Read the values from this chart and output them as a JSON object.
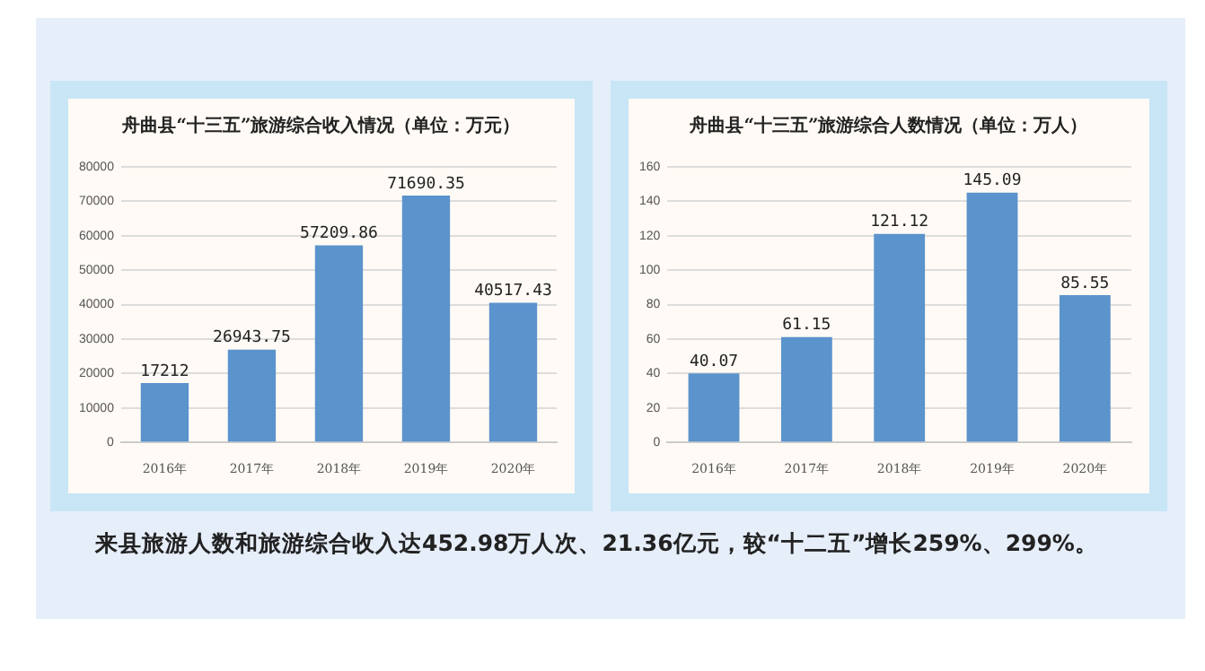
{
  "chart_data": [
    {
      "type": "bar",
      "title": "舟曲县“十三五”旅游综合收入情况（单位：万元）",
      "categories": [
        "2016年",
        "2017年",
        "2018年",
        "2019年",
        "2020年"
      ],
      "values": [
        17212,
        26943.75,
        57209.86,
        71690.35,
        40517.43
      ],
      "color": "#5b93cc",
      "ylim": [
        0,
        80000
      ],
      "yticks": [
        0,
        10000,
        20000,
        30000,
        40000,
        50000,
        60000,
        70000,
        80000
      ],
      "grid": "y",
      "data_labels": true
    },
    {
      "type": "bar",
      "title": "舟曲县“十三五”旅游综合人数情况（单位：万人）",
      "categories": [
        "2016年",
        "2017年",
        "2018年",
        "2019年",
        "2020年"
      ],
      "values": [
        40.07,
        61.15,
        121.12,
        145.09,
        85.55
      ],
      "color": "#5b93cc",
      "ylim": [
        0,
        160
      ],
      "yticks": [
        0,
        20,
        40,
        60,
        80,
        100,
        120,
        140,
        160
      ],
      "grid": "y",
      "data_labels": true
    },
    {
      "type": "other",
      "annotations": [
        "来县旅游人数和旅游综合收入达452.98万人次、21.36亿元，较“十二五”增长259%、299%。"
      ]
    }
  ]
}
